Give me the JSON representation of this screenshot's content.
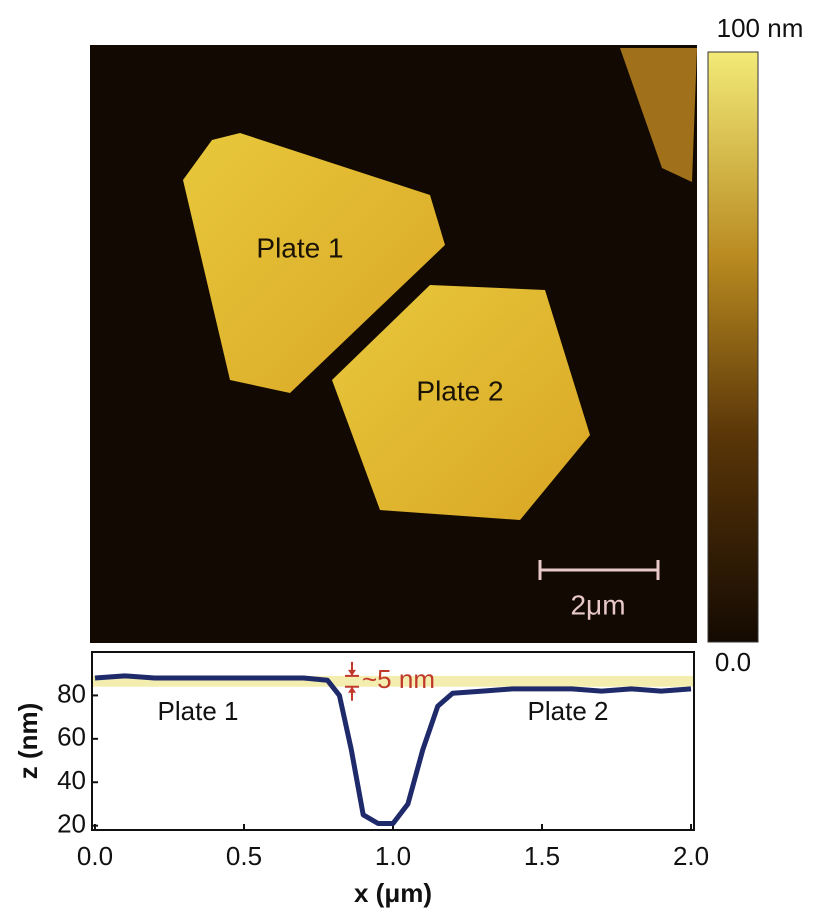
{
  "image": {
    "labels": [
      "Plate 1",
      "Plate 2"
    ],
    "scale_bar": "2μm"
  },
  "colorbar": {
    "ticks": [
      {
        "value": 100,
        "label": "100 nm"
      },
      {
        "value": 0,
        "label": "0.0"
      }
    ],
    "lim": [
      0,
      100
    ]
  },
  "chart_data": {
    "type": "line",
    "xlabel": "x (μm)",
    "ylabel": "z (nm)",
    "x": [
      0.0,
      0.1,
      0.2,
      0.3,
      0.4,
      0.5,
      0.6,
      0.7,
      0.78,
      0.82,
      0.86,
      0.9,
      0.95,
      1.0,
      1.05,
      1.1,
      1.15,
      1.2,
      1.3,
      1.4,
      1.5,
      1.6,
      1.7,
      1.8,
      1.9,
      2.0
    ],
    "values": [
      88,
      89,
      88,
      88,
      88,
      88,
      88,
      88,
      87,
      80,
      55,
      25,
      21,
      21,
      30,
      55,
      75,
      81,
      82,
      83,
      83,
      83,
      82,
      83,
      82,
      83
    ],
    "color": "#1f2a6b",
    "xlim": [
      -0.01,
      2.01
    ],
    "ylim": [
      18,
      100
    ],
    "xticks": [
      {
        "value": 0,
        "label": "0.0"
      },
      0.5,
      {
        "value": 1,
        "label": "1.0"
      },
      1.5,
      {
        "value": 2,
        "label": "2.0"
      }
    ],
    "yticks": [
      20,
      40,
      60,
      80
    ],
    "band": [
      84,
      89
    ],
    "band_color": "#f3eeb0",
    "annotations": [
      "Plate 1",
      "Plate 2",
      "~5 nm"
    ]
  }
}
